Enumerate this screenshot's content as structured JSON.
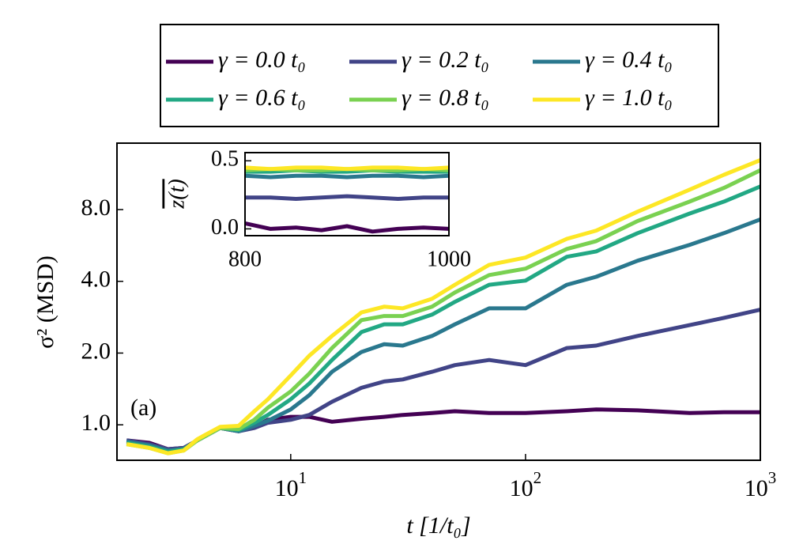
{
  "chart_data": [
    {
      "type": "line",
      "xscale": "log",
      "yscale": "log",
      "xlabel": "t [1/t₀]",
      "ylabel": "σ² (MSD)",
      "annotation": "(a)",
      "legend": "top-outside",
      "xlim": [
        1.82,
        1000
      ],
      "ylim": [
        0.71,
        15.2
      ],
      "xticks": [
        {
          "value": 10,
          "label": "10",
          "exponent": "1"
        },
        {
          "value": 100,
          "label": "10",
          "exponent": "2"
        },
        {
          "value": 1000,
          "label": "10",
          "exponent": "3"
        }
      ],
      "yticks": [
        {
          "value": 1,
          "label": "1.0"
        },
        {
          "value": 2,
          "label": "2.0"
        },
        {
          "value": 4,
          "label": "4.0"
        },
        {
          "value": 8,
          "label": "8.0"
        }
      ],
      "x": [
        2,
        2.5,
        3,
        3.5,
        4,
        5,
        6,
        7,
        8,
        10,
        12,
        15,
        20,
        25,
        30,
        40,
        50,
        70,
        100,
        150,
        200,
        300,
        500,
        700,
        1000
      ],
      "series": [
        {
          "name": "γ = 0.0 t₀",
          "color": "#440154",
          "values": [
            0.86,
            0.84,
            0.79,
            0.8,
            0.86,
            0.97,
            0.94,
            0.98,
            1.05,
            1.08,
            1.08,
            1.03,
            1.06,
            1.08,
            1.1,
            1.12,
            1.14,
            1.12,
            1.12,
            1.14,
            1.16,
            1.15,
            1.12,
            1.13,
            1.13
          ]
        },
        {
          "name": "γ = 0.2 t₀",
          "color": "#414487",
          "values": [
            0.86,
            0.83,
            0.79,
            0.8,
            0.86,
            0.97,
            0.94,
            0.97,
            1.02,
            1.05,
            1.1,
            1.25,
            1.43,
            1.52,
            1.55,
            1.67,
            1.78,
            1.87,
            1.78,
            2.1,
            2.15,
            2.36,
            2.62,
            2.81,
            3.04
          ]
        },
        {
          "name": "γ = 0.4 t₀",
          "color": "#2a788e",
          "values": [
            0.85,
            0.82,
            0.78,
            0.79,
            0.86,
            0.97,
            0.94,
            0.99,
            1.04,
            1.16,
            1.33,
            1.67,
            2.02,
            2.18,
            2.15,
            2.36,
            2.64,
            3.08,
            3.08,
            3.87,
            4.18,
            4.88,
            5.69,
            6.37,
            7.27
          ]
        },
        {
          "name": "γ = 0.6 t₀",
          "color": "#22a884",
          "values": [
            0.84,
            0.81,
            0.77,
            0.79,
            0.86,
            0.97,
            0.95,
            1.02,
            1.1,
            1.28,
            1.49,
            1.87,
            2.45,
            2.64,
            2.64,
            2.9,
            3.28,
            3.87,
            4.03,
            5.07,
            5.34,
            6.37,
            7.7,
            8.64,
            10.0
          ]
        },
        {
          "name": "γ = 0.8 t₀",
          "color": "#7ad151",
          "values": [
            0.83,
            0.8,
            0.76,
            0.78,
            0.86,
            0.97,
            0.96,
            1.05,
            1.18,
            1.38,
            1.64,
            2.1,
            2.75,
            2.86,
            2.86,
            3.13,
            3.59,
            4.25,
            4.52,
            5.47,
            5.9,
            7.16,
            8.64,
            9.86,
            11.7
          ]
        },
        {
          "name": "γ = 1.0 t₀",
          "color": "#fde725",
          "values": [
            0.83,
            0.8,
            0.76,
            0.78,
            0.87,
            0.98,
            0.99,
            1.14,
            1.28,
            1.61,
            1.95,
            2.36,
            2.96,
            3.13,
            3.08,
            3.38,
            3.87,
            4.69,
            5.03,
            6.03,
            6.53,
            7.84,
            9.7,
            11.2,
            12.9
          ]
        }
      ]
    },
    {
      "type": "line",
      "xscale": "linear",
      "yscale": "linear",
      "ylabel": "z(t)",
      "xlim": [
        800,
        1000
      ],
      "ylim": [
        -0.05,
        0.56
      ],
      "xticks": [
        800,
        1000
      ],
      "yticks": [
        {
          "value": 0,
          "label": "0.0"
        },
        {
          "value": 0.5,
          "label": "0.5"
        }
      ],
      "x": [
        800,
        825,
        850,
        875,
        900,
        925,
        950,
        975,
        1000
      ],
      "series": [
        {
          "color": "#440154",
          "values": [
            0.04,
            0.0,
            0.01,
            -0.01,
            0.02,
            -0.02,
            0.0,
            0.01,
            0.0
          ]
        },
        {
          "color": "#414487",
          "values": [
            0.23,
            0.23,
            0.22,
            0.23,
            0.24,
            0.23,
            0.22,
            0.23,
            0.23
          ]
        },
        {
          "color": "#2a788e",
          "values": [
            0.39,
            0.38,
            0.39,
            0.39,
            0.38,
            0.39,
            0.39,
            0.38,
            0.39
          ]
        },
        {
          "color": "#22a884",
          "values": [
            0.42,
            0.42,
            0.43,
            0.42,
            0.42,
            0.43,
            0.42,
            0.42,
            0.42
          ]
        },
        {
          "color": "#7ad151",
          "values": [
            0.43,
            0.44,
            0.43,
            0.43,
            0.44,
            0.43,
            0.43,
            0.44,
            0.43
          ]
        },
        {
          "color": "#fde725",
          "values": [
            0.45,
            0.44,
            0.45,
            0.45,
            0.44,
            0.45,
            0.45,
            0.44,
            0.45
          ]
        }
      ]
    }
  ]
}
